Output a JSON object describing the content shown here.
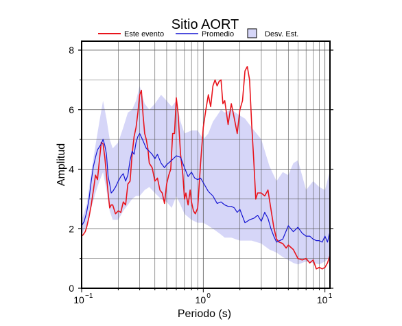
{
  "chart_data": {
    "type": "line",
    "title": "Sitio AORT",
    "xlabel": "Periodo (s)",
    "ylabel": "Amplitud",
    "xscale": "log",
    "xlim": [
      0.1,
      11
    ],
    "ylim": [
      0,
      8.3
    ],
    "grid": true,
    "legend_position": "top",
    "x_ticks": [
      {
        "value": 0.1,
        "base": "10",
        "exp": "−1"
      },
      {
        "value": 1,
        "base": "10",
        "exp": "0"
      },
      {
        "value": 10,
        "base": "10",
        "exp": "1"
      }
    ],
    "y_ticks": [
      0,
      2,
      4,
      6,
      8
    ],
    "legend": {
      "event_label": "Este evento",
      "mean_label": "Promedio",
      "std_label": "Desv. Est."
    },
    "colors": {
      "event": "#e8141c",
      "mean": "#1414d2",
      "std_band": "#d6d6f8",
      "std_border": "#000000"
    },
    "series": [
      {
        "name": "Este evento",
        "color": "#e8141c",
        "x": [
          0.1,
          0.103,
          0.107,
          0.11,
          0.115,
          0.12,
          0.125,
          0.13,
          0.135,
          0.14,
          0.145,
          0.15,
          0.155,
          0.16,
          0.165,
          0.17,
          0.175,
          0.18,
          0.19,
          0.2,
          0.21,
          0.22,
          0.23,
          0.24,
          0.25,
          0.26,
          0.27,
          0.28,
          0.29,
          0.3,
          0.31,
          0.32,
          0.33,
          0.34,
          0.35,
          0.36,
          0.38,
          0.4,
          0.42,
          0.44,
          0.46,
          0.48,
          0.5,
          0.52,
          0.54,
          0.56,
          0.58,
          0.6,
          0.62,
          0.65,
          0.68,
          0.7,
          0.72,
          0.75,
          0.78,
          0.8,
          0.83,
          0.86,
          0.9,
          0.95,
          1.0,
          1.05,
          1.1,
          1.15,
          1.2,
          1.25,
          1.3,
          1.35,
          1.4,
          1.45,
          1.5,
          1.6,
          1.7,
          1.8,
          1.9,
          2.0,
          2.1,
          2.2,
          2.3,
          2.4,
          2.5,
          2.6,
          2.7,
          2.8,
          3.0,
          3.2,
          3.4,
          3.6,
          3.8,
          4.0,
          4.2,
          4.5,
          4.8,
          5.0,
          5.5,
          6.0,
          6.5,
          7.0,
          7.5,
          8.0,
          8.5,
          9.0,
          9.5,
          10.0,
          10.5,
          11.0
        ],
        "y": [
          1.75,
          1.8,
          1.9,
          2.05,
          2.4,
          2.8,
          3.3,
          3.8,
          3.65,
          4.3,
          4.9,
          4.85,
          4.4,
          3.8,
          3.2,
          2.7,
          2.8,
          2.8,
          2.5,
          2.6,
          2.55,
          2.9,
          2.8,
          3.5,
          3.6,
          4.5,
          5.1,
          5.4,
          5.9,
          6.5,
          6.65,
          5.8,
          5.2,
          5.0,
          4.7,
          4.2,
          4.05,
          3.6,
          3.7,
          3.3,
          3.2,
          2.85,
          3.5,
          3.8,
          4.0,
          5.2,
          5.2,
          6.4,
          5.9,
          4.5,
          3.8,
          3.0,
          3.2,
          2.8,
          3.3,
          2.9,
          2.6,
          2.5,
          2.7,
          4.2,
          5.4,
          6.0,
          6.5,
          6.1,
          6.8,
          7.0,
          6.8,
          6.95,
          7.0,
          6.2,
          6.3,
          5.5,
          6.2,
          5.7,
          5.2,
          6.0,
          6.3,
          7.3,
          7.45,
          7.0,
          5.5,
          4.3,
          3.0,
          3.2,
          3.2,
          3.1,
          3.3,
          2.65,
          2.05,
          1.65,
          1.55,
          1.5,
          1.35,
          1.45,
          1.3,
          1.0,
          0.95,
          1.0,
          0.85,
          0.95,
          0.65,
          0.7,
          0.65,
          0.7,
          0.85,
          1.1
        ]
      },
      {
        "name": "Promedio",
        "color": "#1414d2",
        "x": [
          0.1,
          0.105,
          0.11,
          0.115,
          0.12,
          0.125,
          0.13,
          0.135,
          0.14,
          0.145,
          0.15,
          0.155,
          0.16,
          0.165,
          0.17,
          0.175,
          0.18,
          0.19,
          0.2,
          0.21,
          0.22,
          0.23,
          0.24,
          0.25,
          0.26,
          0.27,
          0.28,
          0.29,
          0.3,
          0.32,
          0.34,
          0.36,
          0.38,
          0.4,
          0.42,
          0.45,
          0.48,
          0.5,
          0.55,
          0.6,
          0.65,
          0.7,
          0.75,
          0.8,
          0.85,
          0.9,
          0.95,
          1.0,
          1.1,
          1.2,
          1.3,
          1.4,
          1.5,
          1.6,
          1.7,
          1.8,
          1.9,
          2.0,
          2.2,
          2.4,
          2.6,
          2.8,
          3.0,
          3.2,
          3.4,
          3.6,
          3.8,
          4.0,
          4.5,
          5.0,
          5.5,
          6.0,
          6.5,
          7.0,
          7.5,
          8.0,
          8.5,
          9.0,
          9.5,
          10.0,
          10.5,
          11.0
        ],
        "y": [
          2.1,
          2.25,
          2.55,
          3.0,
          3.6,
          4.1,
          4.4,
          4.65,
          4.75,
          4.85,
          5.0,
          4.8,
          4.5,
          3.75,
          3.5,
          3.2,
          3.25,
          3.4,
          3.6,
          3.75,
          3.85,
          3.6,
          3.8,
          4.3,
          4.6,
          4.5,
          4.9,
          5.1,
          5.2,
          4.95,
          4.7,
          4.6,
          4.5,
          4.35,
          4.5,
          4.2,
          4.05,
          4.15,
          4.3,
          4.45,
          4.4,
          4.05,
          3.75,
          3.9,
          3.7,
          3.65,
          3.7,
          3.55,
          3.25,
          3.1,
          2.85,
          2.9,
          2.8,
          2.75,
          2.75,
          2.7,
          2.55,
          2.65,
          2.2,
          2.3,
          2.35,
          2.45,
          2.25,
          2.55,
          2.35,
          2.0,
          1.75,
          1.55,
          1.65,
          2.1,
          1.9,
          2.05,
          1.85,
          1.75,
          1.75,
          1.65,
          1.6,
          1.6,
          1.55,
          1.75,
          1.55,
          1.9
        ]
      }
    ],
    "std_band": {
      "name": "Desv. Est.",
      "x": [
        0.1,
        0.11,
        0.12,
        0.13,
        0.14,
        0.15,
        0.16,
        0.17,
        0.18,
        0.2,
        0.22,
        0.24,
        0.26,
        0.28,
        0.3,
        0.33,
        0.36,
        0.4,
        0.45,
        0.5,
        0.55,
        0.6,
        0.65,
        0.7,
        0.8,
        0.9,
        1.0,
        1.1,
        1.2,
        1.3,
        1.4,
        1.5,
        1.7,
        2.0,
        2.2,
        2.5,
        3.0,
        3.5,
        4.0,
        4.5,
        5.0,
        5.5,
        6.0,
        7.0,
        8.0,
        9.0,
        10.0,
        11.0
      ],
      "lower": [
        1.8,
        2.1,
        2.7,
        3.2,
        3.6,
        3.9,
        3.3,
        2.6,
        2.3,
        2.3,
        2.6,
        2.8,
        3.0,
        3.1,
        3.1,
        3.3,
        3.4,
        3.2,
        3.0,
        2.9,
        2.7,
        3.1,
        2.8,
        2.5,
        2.3,
        2.2,
        2.2,
        2.1,
        2.0,
        1.9,
        1.8,
        1.7,
        1.7,
        1.6,
        1.6,
        1.6,
        1.5,
        1.3,
        1.2,
        1.05,
        0.95,
        0.85,
        0.8,
        0.9,
        0.85,
        0.8,
        0.9,
        1.05
      ],
      "upper": [
        2.3,
        2.8,
        3.9,
        4.8,
        5.6,
        6.3,
        5.7,
        5.0,
        4.7,
        4.9,
        5.4,
        5.9,
        6.0,
        6.3,
        6.8,
        6.2,
        6.0,
        6.2,
        6.5,
        6.3,
        6.1,
        6.3,
        5.6,
        5.2,
        5.3,
        5.3,
        5.0,
        5.2,
        5.6,
        5.8,
        6.0,
        5.9,
        6.0,
        5.8,
        5.7,
        5.4,
        5.0,
        4.1,
        3.6,
        3.9,
        3.8,
        4.2,
        4.3,
        3.3,
        3.6,
        3.4,
        3.3,
        3.95
      ]
    }
  }
}
